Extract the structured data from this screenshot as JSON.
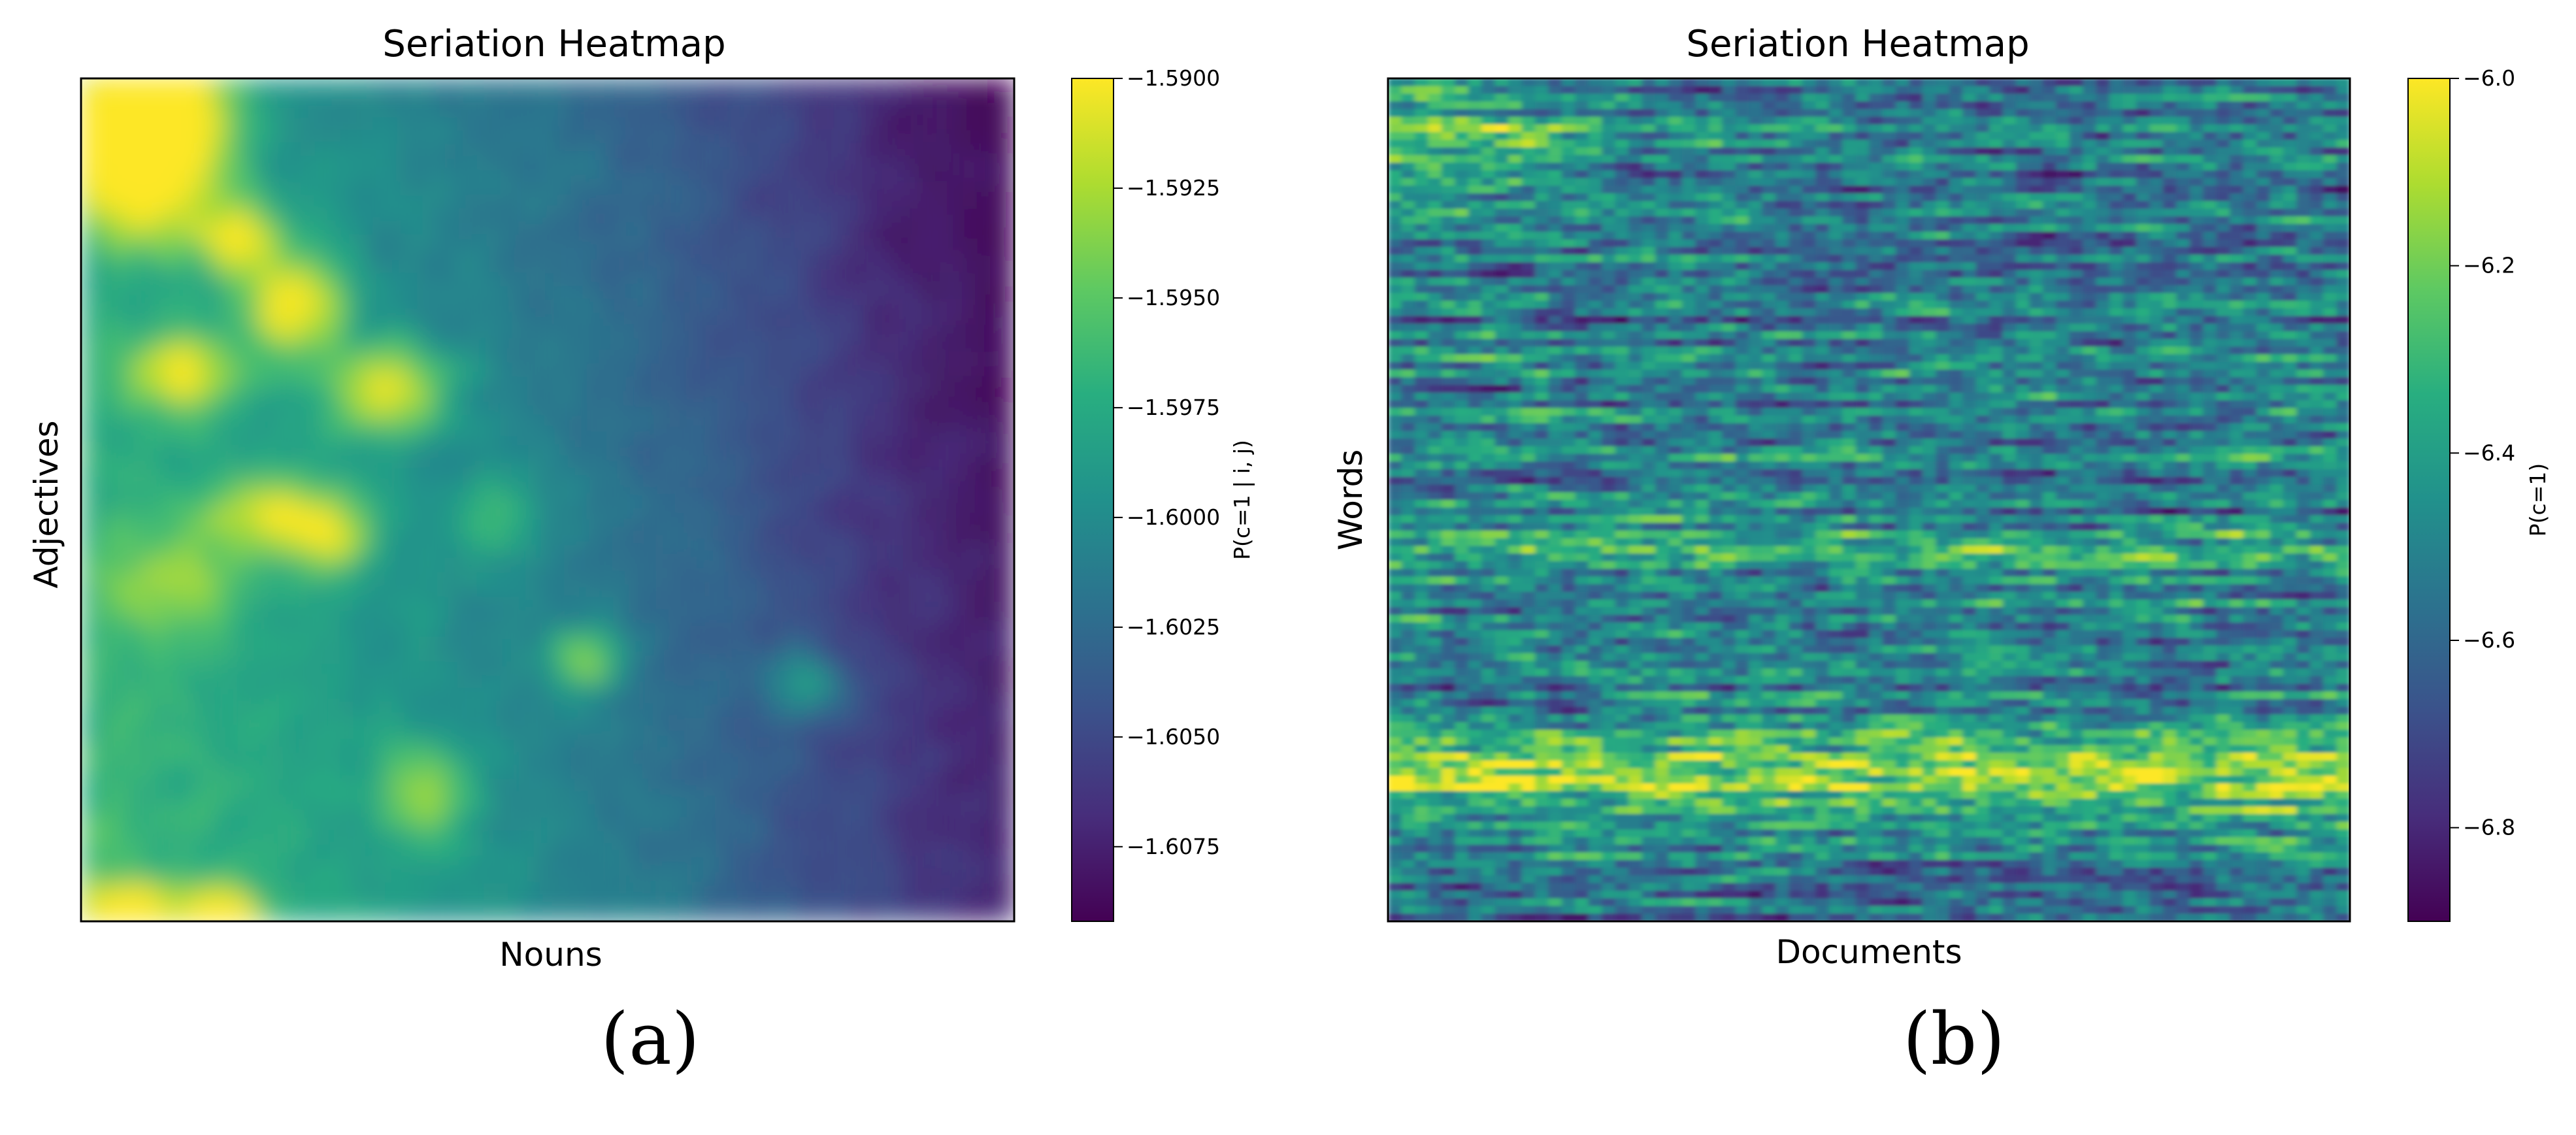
{
  "chart_data": [
    {
      "type": "heatmap",
      "title": "Seriation Heatmap",
      "xlabel": "Nouns",
      "ylabel": "Adjectives",
      "colormap": "viridis",
      "colorbar": {
        "label": "P(c=1 | i, j)",
        "range": [
          -1.6092,
          -1.59
        ],
        "ticks": [
          -1.59,
          -1.5925,
          -1.595,
          -1.5975,
          -1.6,
          -1.6025,
          -1.605,
          -1.6075
        ],
        "tick_labels": [
          "−1.5900",
          "−1.5925",
          "−1.5950",
          "−1.5975",
          "−1.6000",
          "−1.6025",
          "−1.6050",
          "−1.6075"
        ]
      },
      "pattern": "high values concentrated in the top-left corner, decreasing toward the right; smooth blobs",
      "caption": "(a)"
    },
    {
      "type": "heatmap",
      "title": "Seriation Heatmap",
      "xlabel": "Documents",
      "ylabel": "Words",
      "colormap": "viridis",
      "colorbar": {
        "label": "P(c=1)",
        "range": [
          -6.9,
          -6.0
        ],
        "ticks": [
          -6.0,
          -6.2,
          -6.4,
          -6.6,
          -6.8
        ],
        "tick_labels": [
          "−6.0",
          "−6.2",
          "−6.4",
          "−6.6",
          "−6.8"
        ]
      },
      "pattern": "horizontally streaked texture with a bright band in the lower portion and near the top-left",
      "caption": "(b)"
    }
  ]
}
